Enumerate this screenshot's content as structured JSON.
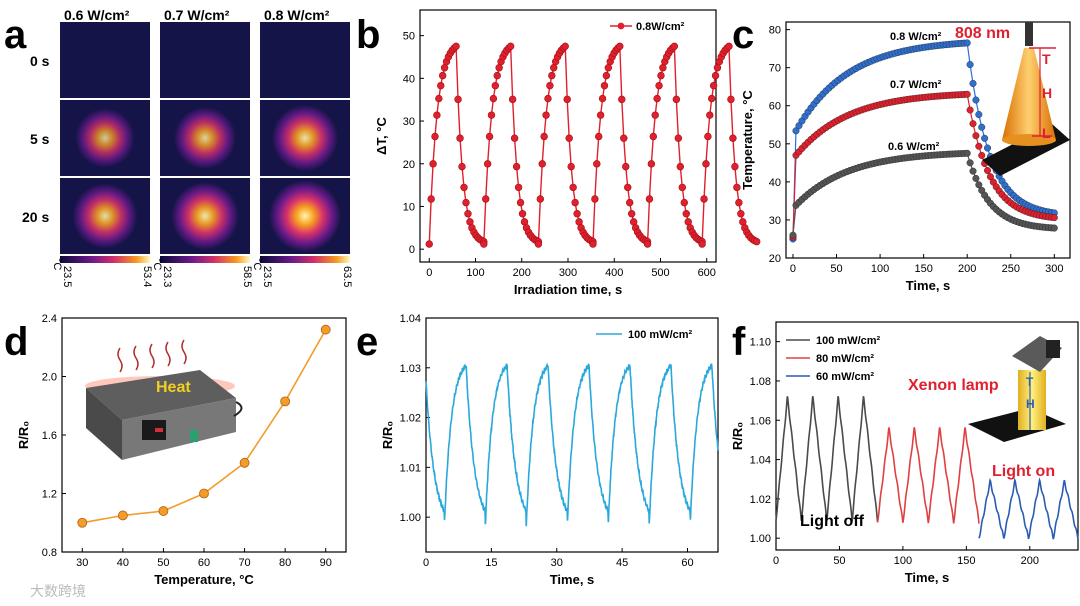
{
  "panels": {
    "a": "a",
    "b": "b",
    "c": "c",
    "d": "d",
    "e": "e",
    "f": "f"
  },
  "panel_a": {
    "columns": [
      "0.6 W/cm²",
      "0.7 W/cm²",
      "0.8 W/cm²"
    ],
    "rows": [
      "0 s",
      "5 s",
      "20 s"
    ],
    "colorbars": [
      {
        "unit": "°C",
        "min": "23.5",
        "max": "53.4"
      },
      {
        "unit": "°C",
        "min": "23.3",
        "max": "58.5"
      },
      {
        "unit": "°C",
        "min": "23.5",
        "max": "63.5"
      }
    ],
    "intensity": [
      [
        0,
        0,
        0
      ],
      [
        0.55,
        0.65,
        0.8
      ],
      [
        0.75,
        0.85,
        1.0
      ]
    ]
  },
  "colors": {
    "red": "#e0202c",
    "blue": "#2e6fd0",
    "gray": "#555555",
    "orange": "#f39c2a",
    "cyan": "#2aa8dc",
    "navy": "#2a5db0",
    "f_gray": "#4a4a4a",
    "f_red": "#e04040",
    "f_blue": "#2a5db0"
  },
  "chart_data": [
    {
      "id": "b",
      "type": "line",
      "xlabel": "Irradiation time, s",
      "ylabel": "ΔT, °C",
      "xlim": [
        -20,
        620
      ],
      "ylim": [
        -3,
        56
      ],
      "xticks": [
        0,
        100,
        200,
        300,
        400,
        500,
        600
      ],
      "yticks": [
        0,
        10,
        20,
        30,
        40,
        50
      ],
      "series": [
        {
          "name": "0.8W/cm²",
          "cycles": 6,
          "period": 118,
          "peak": 47.5,
          "min": 1.2
        }
      ]
    },
    {
      "id": "c",
      "type": "scatter",
      "xlabel": "Time, s",
      "ylabel": "Temperature, °C",
      "xlim": [
        -8,
        318
      ],
      "ylim": [
        20,
        82
      ],
      "xticks": [
        0,
        50,
        100,
        150,
        200,
        250,
        300
      ],
      "yticks": [
        20,
        30,
        40,
        50,
        60,
        70,
        80
      ],
      "annotations": [
        "808 nm",
        "T",
        "H",
        "L"
      ],
      "series": [
        {
          "name": "0.8 W/cm²",
          "start": 25,
          "jump": 52,
          "peak": 76.5,
          "end": 31
        },
        {
          "name": "0.7 W/cm²",
          "start": 25.5,
          "jump": 46,
          "peak": 63,
          "end": 30
        },
        {
          "name": "0.6 W/cm²",
          "start": 26,
          "jump": 33,
          "peak": 47.5,
          "end": 27.5
        }
      ]
    },
    {
      "id": "d",
      "type": "line",
      "xlabel": "Temperature, °C",
      "ylabel": "R/R₀",
      "xlim": [
        25,
        95
      ],
      "ylim": [
        0.8,
        2.4
      ],
      "xticks": [
        30,
        40,
        50,
        60,
        70,
        80,
        90
      ],
      "yticks": [
        0.8,
        1.2,
        1.6,
        2.0,
        2.4
      ],
      "annotations": [
        "Heat"
      ],
      "x": [
        30,
        40,
        50,
        60,
        70,
        80,
        90
      ],
      "y": [
        1.0,
        1.05,
        1.08,
        1.2,
        1.41,
        1.83,
        2.32
      ]
    },
    {
      "id": "e",
      "type": "line",
      "xlabel": "Time, s",
      "ylabel": "R/R₀",
      "xlim": [
        0,
        67
      ],
      "ylim": [
        0.993,
        1.04
      ],
      "xticks": [
        0,
        15,
        30,
        45,
        60
      ],
      "yticks": [
        1.0,
        1.01,
        1.02,
        1.03,
        1.04
      ],
      "series": [
        {
          "name": "100 mW/cm²",
          "period": 9.4,
          "peak": 1.0305,
          "min": 0.998
        }
      ]
    },
    {
      "id": "f",
      "type": "line",
      "xlabel": "Time, s",
      "ylabel": "R/R₀",
      "xlim": [
        0,
        238
      ],
      "ylim": [
        0.994,
        1.11
      ],
      "xticks": [
        0,
        50,
        100,
        150,
        200
      ],
      "yticks": [
        1.0,
        1.02,
        1.04,
        1.06,
        1.08,
        1.1
      ],
      "annotations": [
        "Xenon lamp",
        "Light on",
        "Light off",
        "T",
        "H"
      ],
      "series": [
        {
          "name": "100 mW/cm²",
          "from": 0,
          "to": 80,
          "peak": 1.072,
          "min": 1.009
        },
        {
          "name": "80 mW/cm²",
          "from": 80,
          "to": 160,
          "peak": 1.056,
          "min": 1.008
        },
        {
          "name": "60 mW/cm²",
          "from": 160,
          "to": 238,
          "peak": 1.029,
          "min": 1.0
        }
      ]
    }
  ],
  "watermark": "大数跨境"
}
